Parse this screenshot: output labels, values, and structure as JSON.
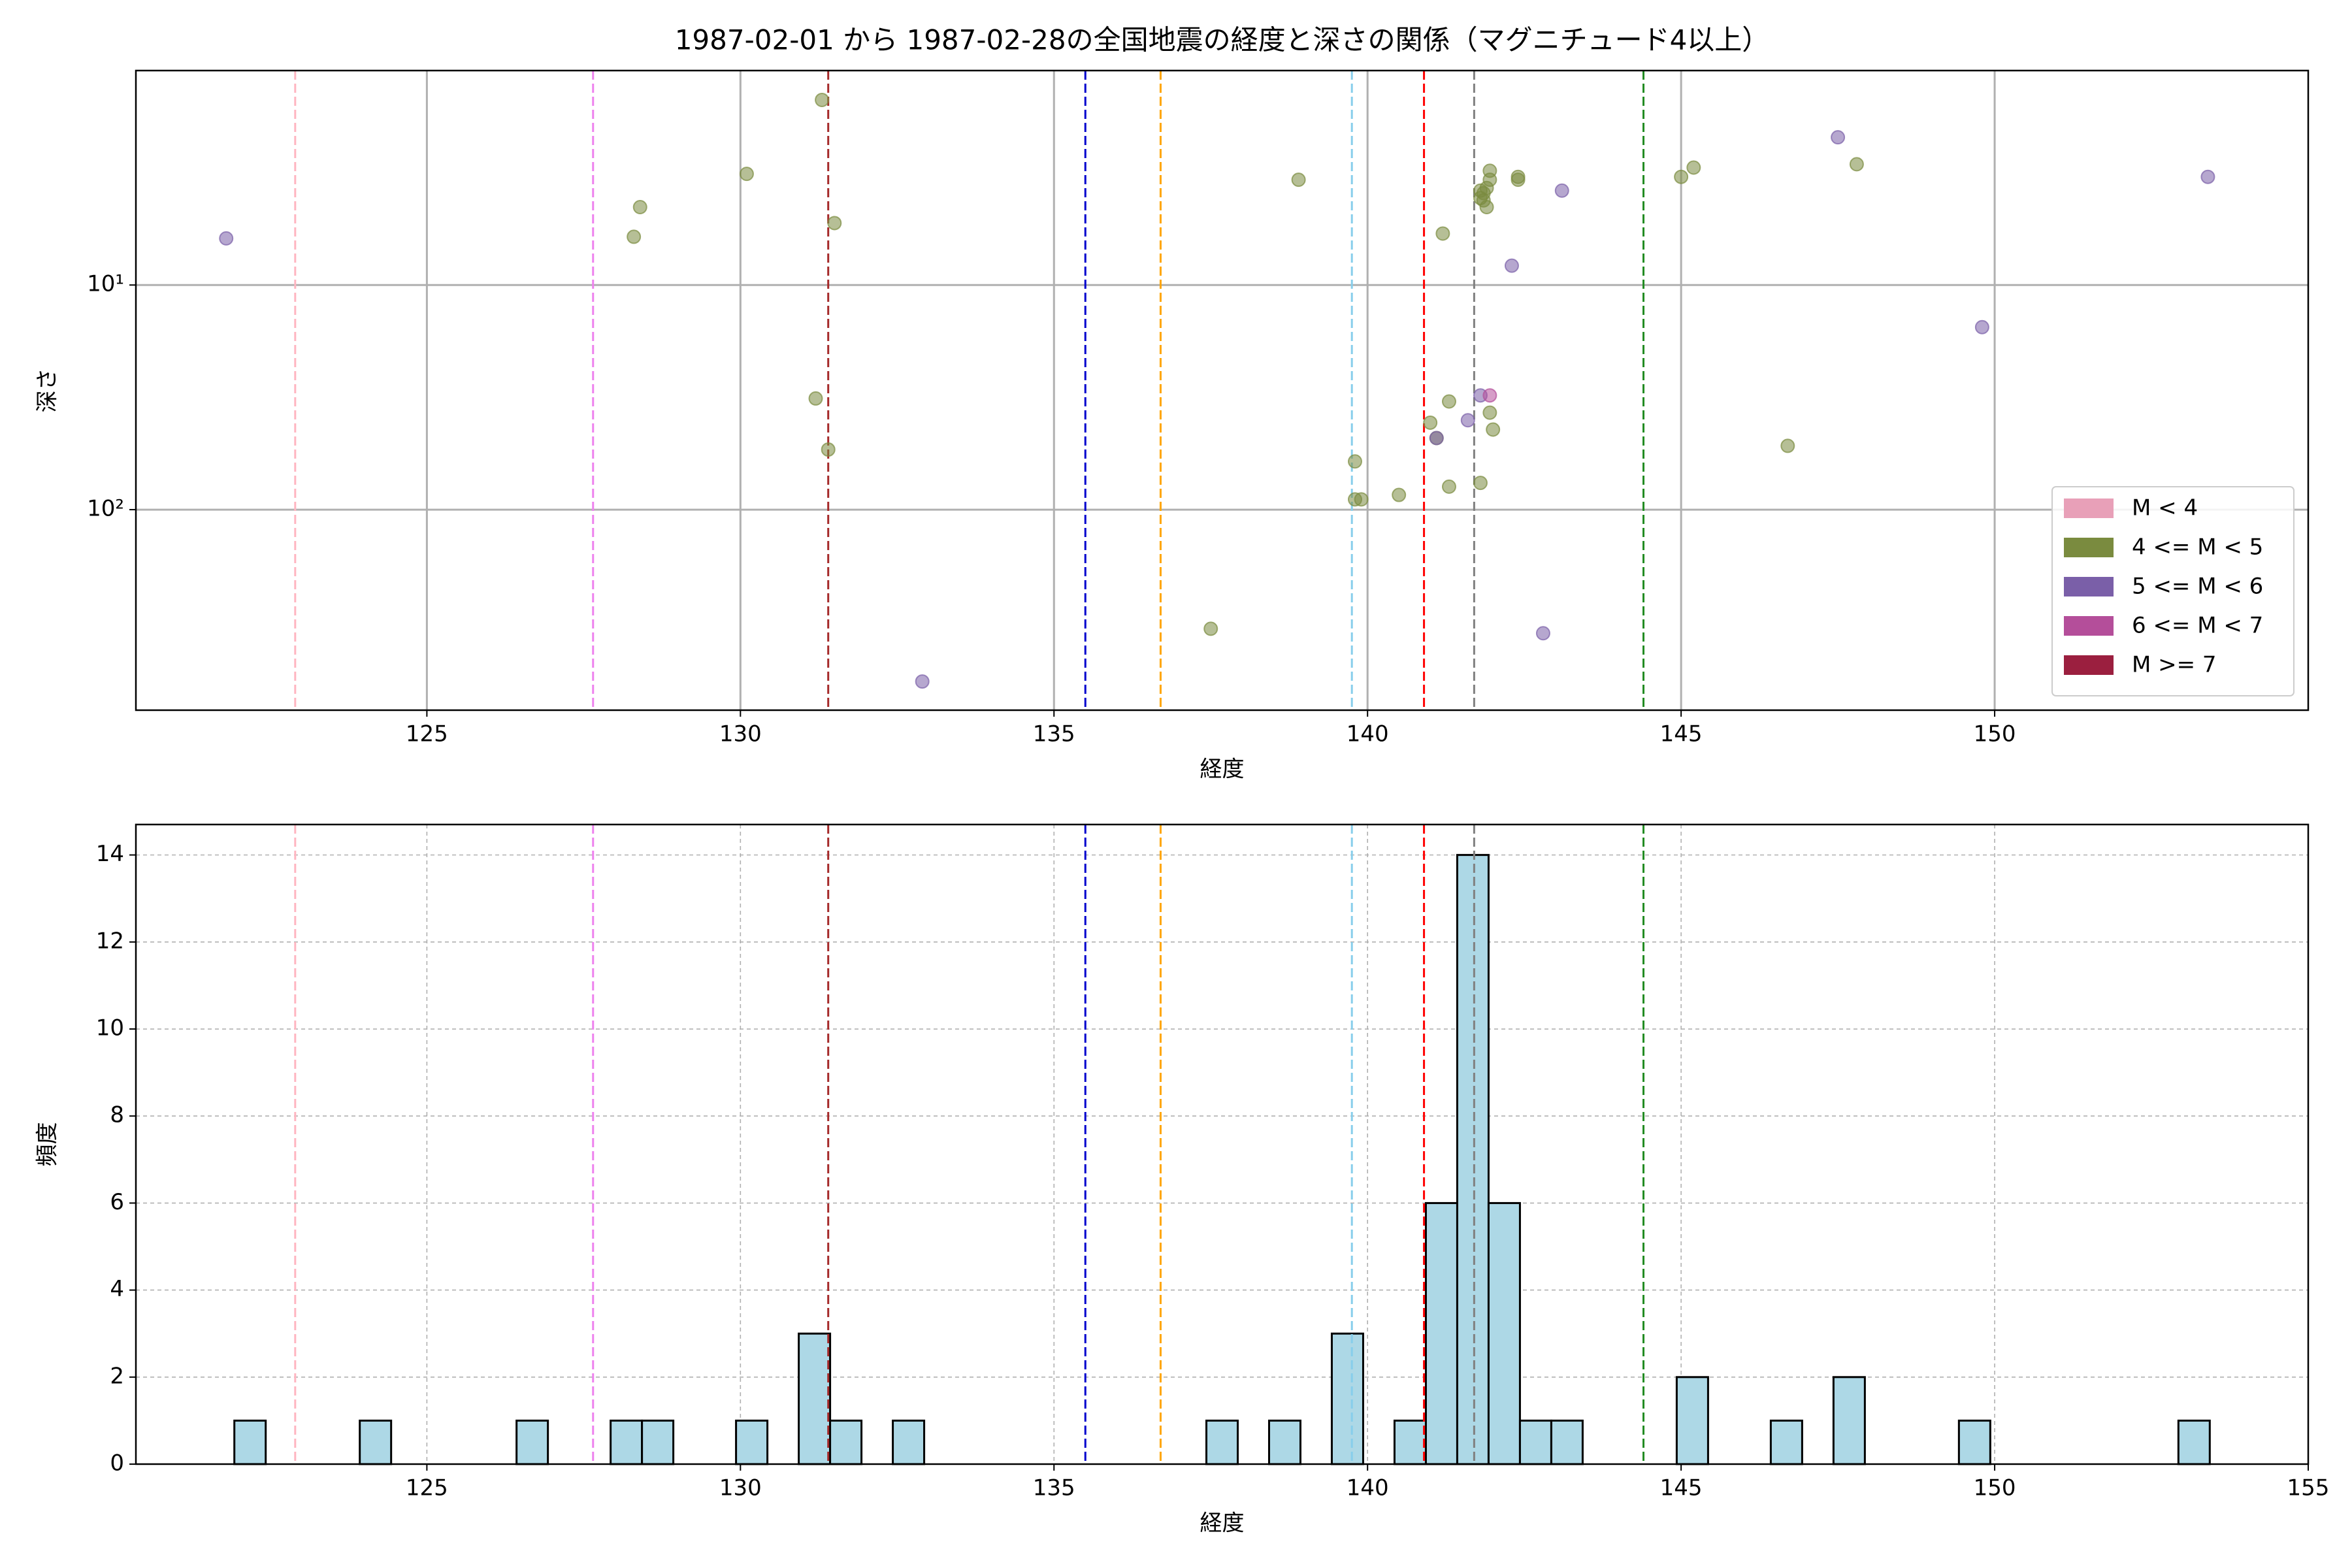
{
  "chart_data": [
    {
      "type": "scatter",
      "title": "1987-02-01 から 1987-02-28の全国地震の経度と深さの関係（マグニチュード4以上）",
      "x_label": "経度",
      "y_label": "深さ",
      "xlim": [
        120.36,
        155
      ],
      "xticks": [
        125,
        130,
        135,
        140,
        145,
        150
      ],
      "ylim": [
        1.11,
        781
      ],
      "log_y": true,
      "invert_y": true,
      "yticks": [
        {
          "value": 10,
          "label": "10¹"
        },
        {
          "value": 100,
          "label": "10²"
        }
      ],
      "grid": true,
      "legend": "lower right",
      "vlines": [
        {
          "x": 122.9,
          "color": "#ffb6c1"
        },
        {
          "x": 127.65,
          "color": "#ee82ee"
        },
        {
          "x": 131.4,
          "color": "#a52a2a"
        },
        {
          "x": 135.5,
          "color": "#0000cd"
        },
        {
          "x": 136.7,
          "color": "#ffa500"
        },
        {
          "x": 139.75,
          "color": "#87ceeb"
        },
        {
          "x": 140.9,
          "color": "#ff0000"
        },
        {
          "x": 141.7,
          "color": "#808080"
        },
        {
          "x": 144.4,
          "color": "#228b22"
        }
      ],
      "series": [
        {
          "name": "M < 4",
          "color": "#e8a0b8",
          "x": [],
          "y": []
        },
        {
          "name": "4 <= M < 5",
          "color": "#7a8b3f",
          "x": [
            128.3,
            128.4,
            130.1,
            131.3,
            131.5,
            131.2,
            131.4,
            137.5,
            138.9,
            139.8,
            139.8,
            139.9,
            140.5,
            141.0,
            141.1,
            141.2,
            141.3,
            141.3,
            141.8,
            141.8,
            141.85,
            141.9,
            141.9,
            141.95,
            141.95,
            141.85,
            141.95,
            142.0,
            141.8,
            142.4,
            142.4,
            145.0,
            145.2,
            146.7,
            147.8
          ],
          "y": [
            6.1,
            4.5,
            3.2,
            1.5,
            5.3,
            32,
            54,
            339,
            3.4,
            61,
            90,
            90,
            86,
            41,
            48,
            5.9,
            33,
            79,
            3.8,
            4.1,
            4.2,
            4.5,
            3.7,
            3.4,
            3.1,
            3.9,
            37,
            44,
            76,
            3.3,
            3.4,
            3.3,
            3.0,
            52,
            2.9
          ]
        },
        {
          "name": "5 <= M < 6",
          "color": "#7a5fa8",
          "x": [
            121.8,
            132.9,
            141.1,
            141.6,
            141.8,
            142.3,
            143.1,
            142.8,
            147.5,
            149.8,
            153.4
          ],
          "y": [
            6.2,
            582,
            48,
            40,
            31,
            8.2,
            3.8,
            355,
            2.2,
            15.4,
            3.3
          ]
        },
        {
          "name": "6 <= M < 7",
          "color": "#b44e9a",
          "x": [
            141.95
          ],
          "y": [
            31
          ]
        },
        {
          "name": "M >= 7",
          "color": "#9b1f3f",
          "x": [],
          "y": []
        }
      ]
    },
    {
      "type": "histogram",
      "x_label": "経度",
      "y_label": "頻度",
      "xlim": [
        120.36,
        155
      ],
      "xticks": [
        125,
        130,
        135,
        140,
        145,
        150,
        155
      ],
      "ylim": [
        0,
        14.7
      ],
      "yticks": [
        0,
        2,
        4,
        6,
        8,
        10,
        12,
        14
      ],
      "grid": true,
      "color": "#add8e6",
      "edgecolor": "#000000",
      "vlines": [
        {
          "x": 122.9,
          "color": "#ffb6c1"
        },
        {
          "x": 127.65,
          "color": "#ee82ee"
        },
        {
          "x": 131.4,
          "color": "#a52a2a"
        },
        {
          "x": 135.5,
          "color": "#0000cd"
        },
        {
          "x": 136.7,
          "color": "#ffa500"
        },
        {
          "x": 139.75,
          "color": "#87ceeb"
        },
        {
          "x": 140.9,
          "color": "#ff0000"
        },
        {
          "x": 141.7,
          "color": "#808080"
        },
        {
          "x": 144.4,
          "color": "#228b22"
        }
      ],
      "bins": [
        121.93,
        122.43,
        122.93,
        123.43,
        123.93,
        124.43,
        124.93,
        125.43,
        125.93,
        126.43,
        126.93,
        127.43,
        127.93,
        128.43,
        128.93,
        129.43,
        129.93,
        130.43,
        130.93,
        131.43,
        131.93,
        132.43,
        132.93,
        133.43,
        133.93,
        134.43,
        134.93,
        135.43,
        135.93,
        136.43,
        136.93,
        137.43,
        137.93,
        138.43,
        138.93,
        139.43,
        139.93,
        140.43,
        140.93,
        141.43,
        141.93,
        142.43,
        142.93,
        143.43,
        143.93,
        144.43,
        144.93,
        145.43,
        145.93,
        146.43,
        146.93,
        147.43,
        147.93,
        148.43,
        148.93,
        149.43,
        149.93,
        150.43,
        150.93,
        151.43,
        151.93,
        152.43,
        152.93,
        153.43
      ],
      "values": [
        1,
        0,
        0,
        0,
        1,
        0,
        0,
        0,
        0,
        1,
        0,
        0,
        1,
        1,
        0,
        0,
        1,
        0,
        3,
        1,
        0,
        1,
        0,
        0,
        0,
        0,
        0,
        0,
        0,
        0,
        0,
        1,
        0,
        1,
        0,
        3,
        0,
        1,
        6,
        14,
        6,
        1,
        1,
        0,
        0,
        0,
        2,
        0,
        0,
        1,
        0,
        2,
        0,
        0,
        0,
        1,
        0,
        0,
        0,
        0,
        0,
        0,
        1
      ]
    }
  ]
}
